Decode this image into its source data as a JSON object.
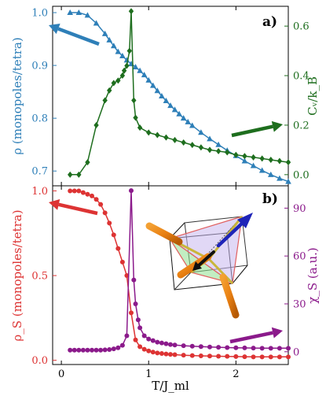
{
  "chart_data": [
    {
      "panel": "a)",
      "type": "line",
      "xlim": [
        -0.1,
        2.6
      ],
      "x_ticks": [
        0,
        1,
        2
      ],
      "x_tick_labels": [
        "",
        "",
        ""
      ],
      "left_axis": {
        "label": "ρ (monopoles/tetra)",
        "color": "#2e7fb8",
        "ylim": [
          0.672,
          1.012
        ],
        "ticks": [
          0.7,
          0.8,
          0.9,
          1.0
        ],
        "tick_labels": [
          "0.7",
          "0.8",
          "0.9",
          "1.0"
        ]
      },
      "right_axis": {
        "label": "Cᵥ/k_B",
        "color": "#1e6e1e",
        "ylim": [
          -0.045,
          0.68
        ],
        "ticks": [
          0.0,
          0.2,
          0.4,
          0.6
        ],
        "tick_labels": [
          "0.0",
          "0.2",
          "0.4",
          "0.6"
        ]
      },
      "series": [
        {
          "axis": "left",
          "marker": "triangle",
          "color": "#2e7fb8",
          "x": [
            0.1,
            0.2,
            0.3,
            0.4,
            0.5,
            0.55,
            0.6,
            0.65,
            0.7,
            0.75,
            0.8,
            0.85,
            0.9,
            0.95,
            1.0,
            1.05,
            1.1,
            1.15,
            1.2,
            1.25,
            1.3,
            1.35,
            1.4,
            1.45,
            1.5,
            1.6,
            1.7,
            1.8,
            1.9,
            2.0,
            2.1,
            2.2,
            2.3,
            2.4,
            2.5,
            2.6
          ],
          "y": [
            1.0,
            1.0,
            0.995,
            0.98,
            0.96,
            0.948,
            0.937,
            0.926,
            0.918,
            0.91,
            0.903,
            0.897,
            0.89,
            0.882,
            0.872,
            0.862,
            0.852,
            0.842,
            0.833,
            0.824,
            0.816,
            0.808,
            0.8,
            0.793,
            0.786,
            0.773,
            0.761,
            0.75,
            0.739,
            0.729,
            0.719,
            0.71,
            0.701,
            0.693,
            0.686,
            0.68
          ]
        },
        {
          "axis": "right",
          "marker": "diamond",
          "color": "#1e6e1e",
          "x": [
            0.1,
            0.2,
            0.3,
            0.4,
            0.5,
            0.55,
            0.6,
            0.65,
            0.7,
            0.72,
            0.75,
            0.78,
            0.8,
            0.83,
            0.85,
            0.9,
            1.0,
            1.1,
            1.2,
            1.3,
            1.4,
            1.5,
            1.6,
            1.7,
            1.8,
            1.9,
            2.0,
            2.1,
            2.2,
            2.3,
            2.4,
            2.5,
            2.6
          ],
          "y": [
            0.0,
            0.0,
            0.05,
            0.2,
            0.3,
            0.34,
            0.37,
            0.38,
            0.4,
            0.42,
            0.44,
            0.5,
            0.66,
            0.3,
            0.23,
            0.19,
            0.17,
            0.16,
            0.15,
            0.14,
            0.13,
            0.12,
            0.11,
            0.1,
            0.095,
            0.09,
            0.08,
            0.075,
            0.07,
            0.065,
            0.06,
            0.055,
            0.05
          ]
        }
      ],
      "arrows": [
        {
          "color": "#2e7fb8",
          "direction": "left",
          "points_to": "left axis"
        },
        {
          "color": "#1e6e1e",
          "direction": "right",
          "points_to": "right axis"
        }
      ]
    },
    {
      "panel": "b)",
      "type": "line",
      "xlim": [
        -0.1,
        2.6
      ],
      "x_ticks": [
        0,
        1,
        2
      ],
      "x_tick_labels": [
        "0",
        "1",
        "2"
      ],
      "xlabel": "T/J_ml",
      "left_axis": {
        "label": "ρ_S (monopoles/tetra)",
        "color": "#dd3333",
        "ylim": [
          -0.025,
          1.03
        ],
        "ticks": [
          0.0,
          0.5,
          1.0
        ],
        "tick_labels": [
          "0.0",
          "0.5",
          "1.0"
        ]
      },
      "right_axis": {
        "label": "χ_S (a.u.)",
        "color": "#8b1a8b",
        "ylim": [
          -8,
          104
        ],
        "ticks": [
          0,
          30,
          60,
          90
        ],
        "tick_labels": [
          "0",
          "30",
          "60",
          "90"
        ]
      },
      "series": [
        {
          "axis": "left",
          "marker": "circle",
          "color": "#dd3333",
          "x": [
            0.1,
            0.15,
            0.2,
            0.25,
            0.3,
            0.35,
            0.4,
            0.45,
            0.5,
            0.55,
            0.6,
            0.65,
            0.7,
            0.75,
            0.8,
            0.85,
            0.9,
            0.95,
            1.0,
            1.05,
            1.1,
            1.15,
            1.2,
            1.25,
            1.3,
            1.4,
            1.5,
            1.6,
            1.7,
            1.8,
            1.9,
            2.0,
            2.1,
            2.2,
            2.3,
            2.4,
            2.5,
            2.6
          ],
          "y": [
            1.0,
            1.0,
            1.0,
            0.99,
            0.98,
            0.97,
            0.95,
            0.92,
            0.87,
            0.81,
            0.74,
            0.66,
            0.58,
            0.5,
            0.28,
            0.12,
            0.08,
            0.065,
            0.055,
            0.048,
            0.043,
            0.04,
            0.037,
            0.035,
            0.033,
            0.03,
            0.028,
            0.026,
            0.025,
            0.024,
            0.023,
            0.022,
            0.021,
            0.02,
            0.02,
            0.02,
            0.02,
            0.02
          ]
        },
        {
          "axis": "right",
          "marker": "circle",
          "color": "#8b1a8b",
          "x": [
            0.1,
            0.15,
            0.2,
            0.25,
            0.3,
            0.35,
            0.4,
            0.45,
            0.5,
            0.55,
            0.6,
            0.65,
            0.7,
            0.75,
            0.8,
            0.83,
            0.85,
            0.88,
            0.9,
            0.95,
            1.0,
            1.05,
            1.1,
            1.15,
            1.2,
            1.25,
            1.3,
            1.4,
            1.5,
            1.6,
            1.7,
            1.8,
            1.9,
            2.0,
            2.1,
            2.2,
            2.3,
            2.4,
            2.5,
            2.6
          ],
          "y": [
            1,
            1,
            1,
            1,
            1,
            1,
            1,
            1,
            1.2,
            1.4,
            1.8,
            2.5,
            4,
            10,
            101,
            45,
            30,
            20,
            15,
            10,
            8,
            7,
            6,
            5.5,
            5,
            4.5,
            4.2,
            3.8,
            3.5,
            3.2,
            3,
            2.8,
            2.6,
            2.5,
            2.4,
            2.3,
            2.2,
            2.2,
            2.2,
            2.2
          ]
        }
      ],
      "arrows": [
        {
          "color": "#dd3333",
          "direction": "left",
          "points_to": "left axis"
        },
        {
          "color": "#8b1a8b",
          "direction": "right",
          "points_to": "right axis"
        }
      ]
    }
  ]
}
